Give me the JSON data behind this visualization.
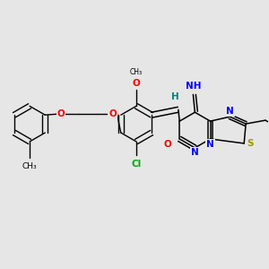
{
  "background_color": "#e6e6e6",
  "figsize": [
    3.0,
    3.0
  ],
  "dpi": 100,
  "colors": {
    "bond": "#000000",
    "O": "#ff0000",
    "N": "#0000ff",
    "S": "#999900",
    "Cl": "#00aa00",
    "H": "#008080",
    "imino_NH": "#0000ff",
    "C": "#000000"
  }
}
